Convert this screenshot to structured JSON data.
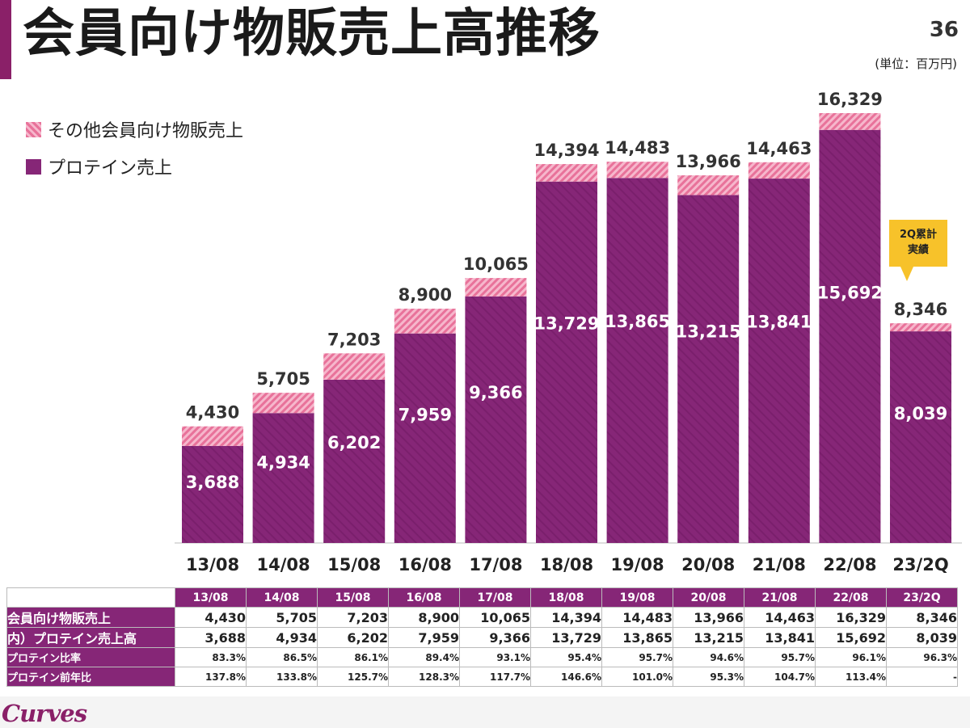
{
  "title": "会員向け物販売上高推移",
  "page_number": "36",
  "unit": "(単位：百万円)",
  "legend": {
    "other": "その他会員向け物販売上",
    "protein": "プロテイン売上"
  },
  "callout": "2Q累計\n実績",
  "colors": {
    "protein": "#862677",
    "other": "#e8729a",
    "accent": "#8a2068",
    "callout": "#f7c22a"
  },
  "logo": "Curves",
  "chart_data": {
    "type": "bar",
    "stacked": true,
    "categories": [
      "13/08",
      "14/08",
      "15/08",
      "16/08",
      "17/08",
      "18/08",
      "19/08",
      "20/08",
      "21/08",
      "22/08",
      "23/2Q"
    ],
    "series": [
      {
        "name": "プロテイン売上",
        "values": [
          3688,
          4934,
          6202,
          7959,
          9366,
          13729,
          13865,
          13215,
          13841,
          15692,
          8039
        ]
      },
      {
        "name": "その他会員向け物販売上",
        "values": [
          742,
          771,
          1001,
          941,
          699,
          665,
          618,
          751,
          622,
          637,
          307
        ]
      }
    ],
    "totals": [
      4430,
      5705,
      7203,
      8900,
      10065,
      14394,
      14483,
      13966,
      14463,
      16329,
      8346
    ],
    "total_labels": [
      "4,430",
      "5,705",
      "7,203",
      "8,900",
      "10,065",
      "14,394",
      "14,483",
      "13,966",
      "14,463",
      "16,329",
      "8,346"
    ],
    "protein_labels": [
      "3,688",
      "4,934",
      "6,202",
      "7,959",
      "9,366",
      "13,729",
      "13,865",
      "13,215",
      "13,841",
      "15,692",
      "8,039"
    ],
    "ylim": [
      0,
      17500
    ],
    "grid": false,
    "legend_position": "top-left"
  },
  "table": {
    "headers": [
      "13/08",
      "14/08",
      "15/08",
      "16/08",
      "17/08",
      "18/08",
      "19/08",
      "20/08",
      "21/08",
      "22/08",
      "23/2Q"
    ],
    "rows": [
      {
        "label": "会員向け物販売上",
        "values": [
          "4,430",
          "5,705",
          "7,203",
          "8,900",
          "10,065",
          "14,394",
          "14,483",
          "13,966",
          "14,463",
          "16,329",
          "8,346"
        ]
      },
      {
        "label": "内）プロテイン売上高",
        "values": [
          "3,688",
          "4,934",
          "6,202",
          "7,959",
          "9,366",
          "13,729",
          "13,865",
          "13,215",
          "13,841",
          "15,692",
          "8,039"
        ]
      },
      {
        "label": "プロテイン比率",
        "values": [
          "83.3%",
          "86.5%",
          "86.1%",
          "89.4%",
          "93.1%",
          "95.4%",
          "95.7%",
          "94.6%",
          "95.7%",
          "96.1%",
          "96.3%"
        ]
      },
      {
        "label": "プロテイン前年比",
        "values": [
          "137.8%",
          "133.8%",
          "125.7%",
          "128.3%",
          "117.7%",
          "146.6%",
          "101.0%",
          "95.3%",
          "104.7%",
          "113.4%",
          "-"
        ]
      }
    ]
  }
}
